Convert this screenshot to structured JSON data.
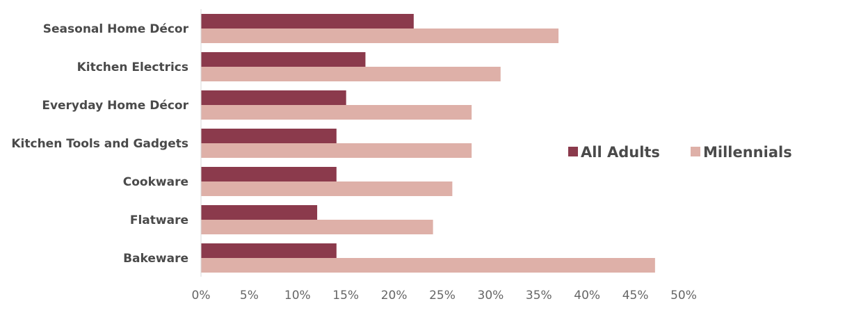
{
  "chart_data": {
    "type": "bar",
    "orientation": "horizontal",
    "categories": [
      "Seasonal Home Décor",
      "Kitchen Electrics",
      "Everyday Home Décor",
      "Kitchen Tools and Gadgets",
      "Cookware",
      "Flatware",
      "Bakeware"
    ],
    "series": [
      {
        "name": "All Adults",
        "color": "#8b3a4c",
        "values": [
          22,
          17,
          15,
          14,
          14,
          12,
          14
        ]
      },
      {
        "name": "Millennials",
        "color": "#deb0a8",
        "values": [
          37,
          31,
          28,
          28,
          26,
          24,
          47
        ]
      }
    ],
    "xticks": [
      "0%",
      "5%",
      "10%",
      "15%",
      "20%",
      "25%",
      "30%",
      "35%",
      "40%",
      "45%",
      "50%"
    ],
    "xlim": [
      0,
      50
    ],
    "unit": "%",
    "grid": false,
    "legend_position": "right"
  }
}
